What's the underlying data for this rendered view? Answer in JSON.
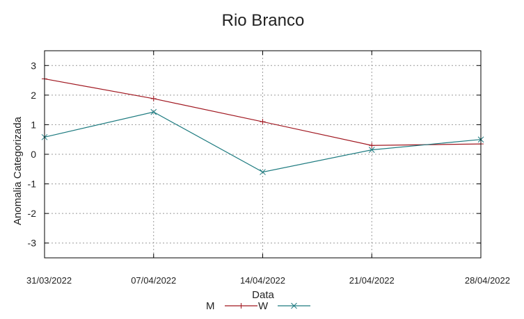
{
  "chart_data": {
    "type": "line",
    "title": "Rio Branco",
    "xlabel": "Data",
    "ylabel": "Anomalia Categorizada",
    "categories": [
      "31/03/2022",
      "07/04/2022",
      "14/04/2022",
      "21/04/2022",
      "28/04/2022"
    ],
    "yticks": [
      "3",
      "2",
      "1",
      "0",
      "-1",
      "-2",
      "-3"
    ],
    "ylim": [
      -3.5,
      3.5
    ],
    "grid": true,
    "legend_position": "bottom",
    "series": [
      {
        "name": "M",
        "color": "#a0161f",
        "marker": "plus",
        "values": [
          2.55,
          1.88,
          1.1,
          0.3,
          0.35
        ]
      },
      {
        "name": "W",
        "color": "#1c7a7f",
        "marker": "cross",
        "values": [
          0.58,
          1.43,
          -0.6,
          0.15,
          0.5
        ]
      }
    ]
  }
}
